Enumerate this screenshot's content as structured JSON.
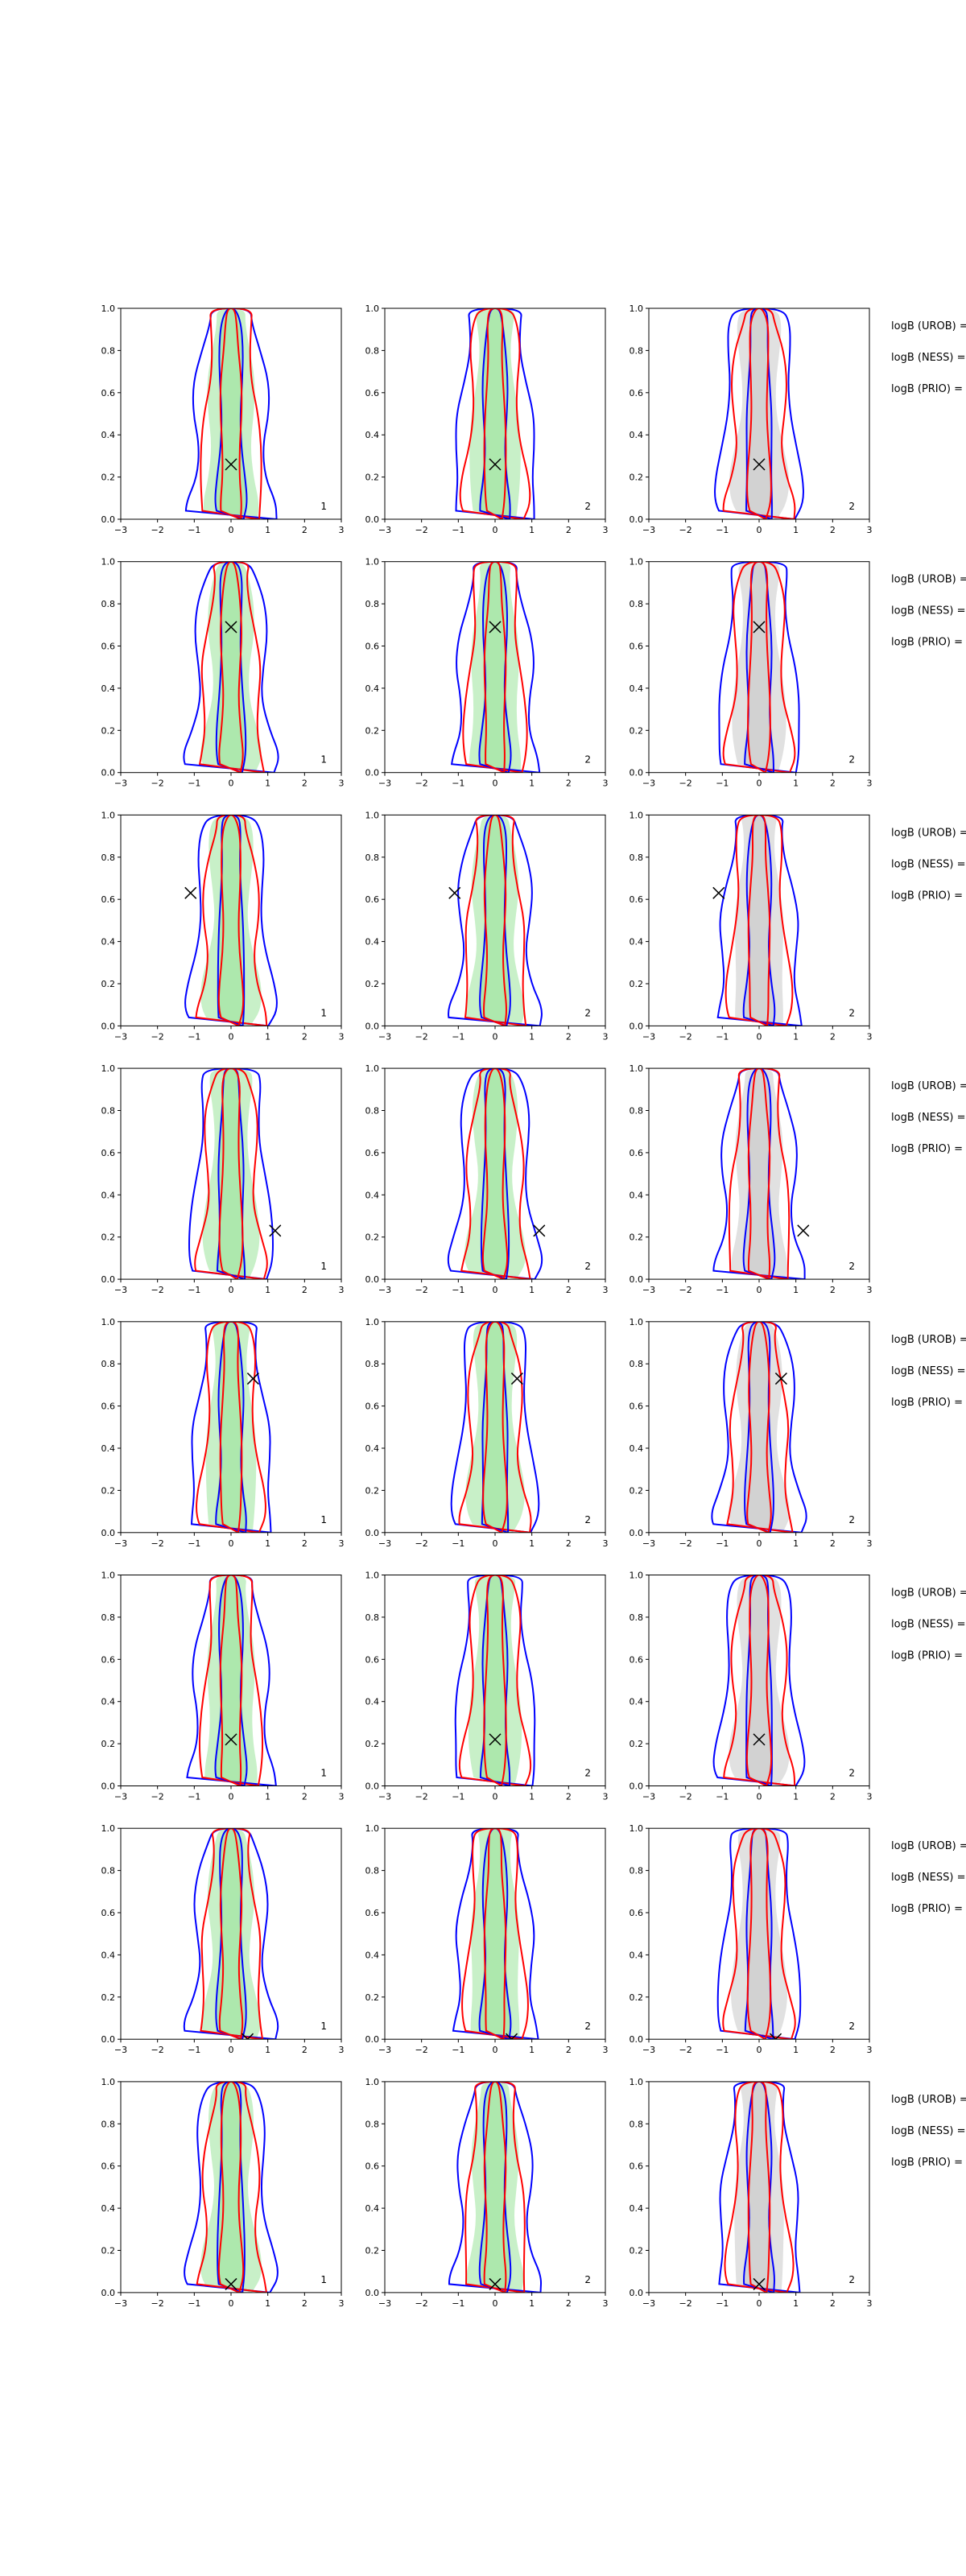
{
  "figure": {
    "colors": {
      "blue_contour": "#0000ff",
      "red_contour": "#ff0000",
      "green_fill": "#9be39b",
      "gray_fill": "#c8c8c8",
      "marker": "#000000"
    },
    "column_corner_labels": [
      "1",
      "2",
      "2"
    ],
    "column_shading": [
      "green",
      "green",
      "gray"
    ],
    "annotations": [
      "logB (UROB) =",
      "logB (NESS) =",
      "logB (PRIO) ="
    ]
  },
  "chart_data": {
    "type": "contour",
    "xlim": [
      -3,
      3
    ],
    "ylim": [
      0,
      1
    ],
    "x_ticks": [
      "−3",
      "−2",
      "−1",
      "0",
      "1",
      "2",
      "3"
    ],
    "y_ticks": [
      "0.0",
      "0.2",
      "0.4",
      "0.6",
      "0.8",
      "1.0"
    ],
    "grid": false,
    "rows": [
      {
        "marker": [
          0.0,
          0.26
        ]
      },
      {
        "marker": [
          0.0,
          0.69
        ]
      },
      {
        "marker": [
          -1.1,
          0.63
        ]
      },
      {
        "marker": [
          1.2,
          0.23
        ]
      },
      {
        "marker": [
          0.6,
          0.73
        ]
      },
      {
        "marker": [
          0.0,
          0.22
        ]
      },
      {
        "marker": [
          0.45,
          0.0
        ]
      },
      {
        "marker": [
          0.0,
          0.04
        ]
      }
    ]
  }
}
